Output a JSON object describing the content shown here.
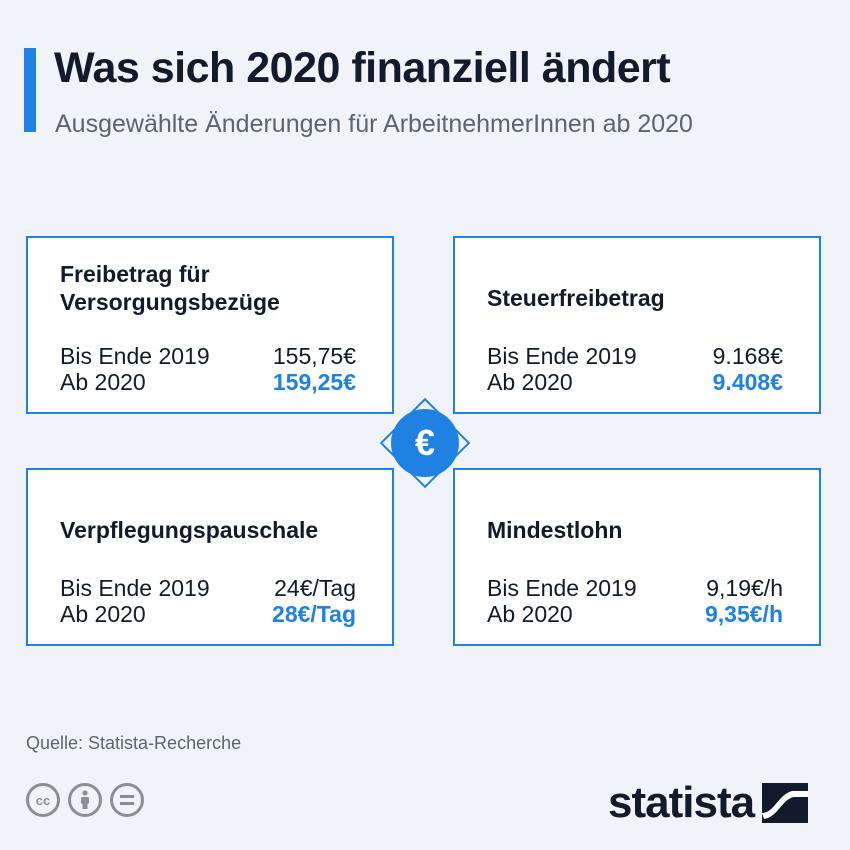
{
  "header": {
    "title": "Was sich 2020 finanziell ändert",
    "subtitle": "Ausgewählte Änderungen für ArbeitnehmerInnen ab 2020",
    "accent_color": "#1f82e2"
  },
  "cards": {
    "top_left": {
      "title_line1": "Freibetrag für",
      "title_line2": "Versorgungsbezüge",
      "row1_label": "Bis Ende 2019",
      "row1_value": "155,75€",
      "row2_label": "Ab 2020",
      "row2_value": "159,25€"
    },
    "top_right": {
      "title": "Steuerfreibetrag",
      "row1_label": "Bis Ende 2019",
      "row1_value": "9.168€",
      "row2_label": "Ab 2020",
      "row2_value": "9.408€"
    },
    "bottom_left": {
      "title": "Verpflegungspauschale",
      "row1_label": "Bis Ende 2019",
      "row1_value": "24€/Tag",
      "row2_label": "Ab 2020",
      "row2_value": "28€/Tag"
    },
    "bottom_right": {
      "title": "Mindestlohn",
      "row1_label": "Bis Ende 2019",
      "row1_value": "9,19€/h",
      "row2_label": "Ab 2020",
      "row2_value": "9,35€/h"
    }
  },
  "center_icon": {
    "symbol": "€",
    "icon": "euro-icon"
  },
  "footer": {
    "source": "Quelle: Statista-Recherche",
    "license_icons": [
      "cc-icon",
      "by-icon",
      "nd-icon"
    ],
    "logo_text": "statista"
  }
}
